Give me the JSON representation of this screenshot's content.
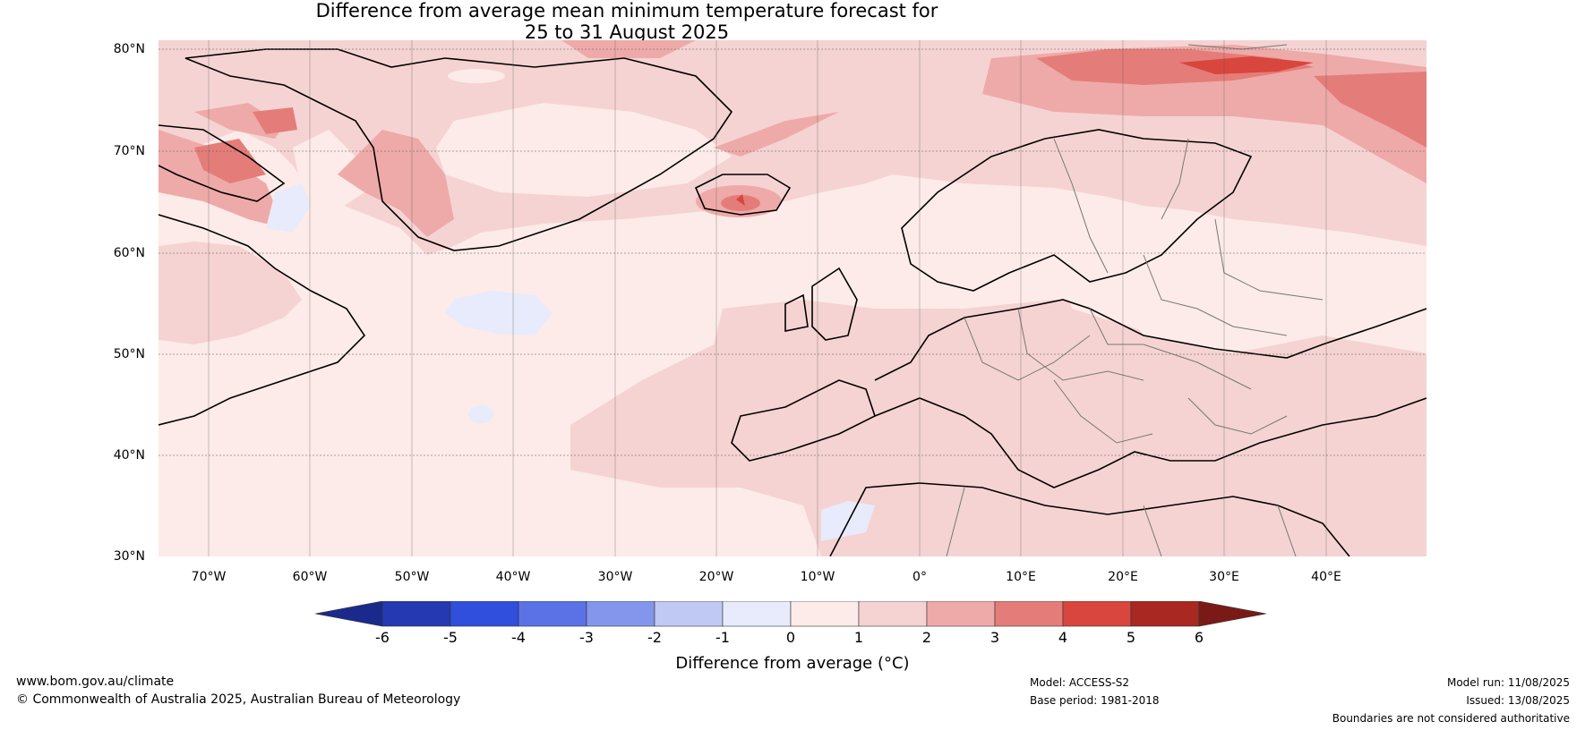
{
  "title": {
    "line1": "Difference from average mean minimum temperature forecast for",
    "line2": "25 to 31 August 2025"
  },
  "map": {
    "lat_labels": [
      "80°N",
      "70°N",
      "60°N",
      "50°N",
      "40°N",
      "30°N"
    ],
    "lon_labels": [
      "70°W",
      "60°W",
      "50°W",
      "40°W",
      "30°W",
      "20°W",
      "10°W",
      "0°",
      "10°E",
      "20°E",
      "30°E",
      "40°E"
    ]
  },
  "legend": {
    "title": "Difference from average (°C)",
    "ticks": [
      "-6",
      "-5",
      "-4",
      "-3",
      "-2",
      "-1",
      "0",
      "1",
      "2",
      "3",
      "4",
      "5",
      "6"
    ],
    "colors": [
      "#1a2a8c",
      "#2539b2",
      "#2f4fdc",
      "#5b72e6",
      "#8496ec",
      "#bfc9f4",
      "#e7ebfb",
      "#fcebe8",
      "#f5d3d2",
      "#eeaaa8",
      "#e47d79",
      "#d8463d",
      "#a92822",
      "#7a1a16"
    ]
  },
  "footer": {
    "website": "www.bom.gov.au/climate",
    "copyright": "© Commonwealth of Australia 2025, Australian Bureau of Meteorology",
    "model": "Model: ACCESS-S2",
    "base_period": "Base period: 1981-2018",
    "model_run": "Model run: 11/08/2025",
    "issued": "Issued: 13/08/2025",
    "disclaimer": "Boundaries are not considered authoritative"
  }
}
